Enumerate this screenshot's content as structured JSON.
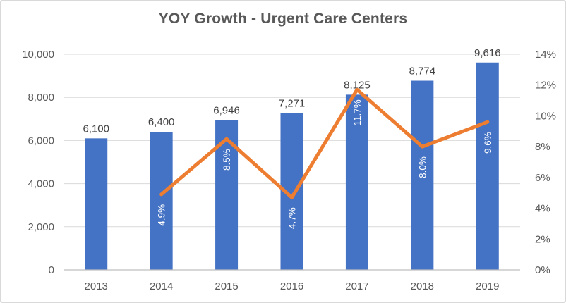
{
  "chart_data": {
    "type": "combo",
    "title": "YOY Growth - Urgent Care Centers",
    "categories": [
      "2013",
      "2014",
      "2015",
      "2016",
      "2017",
      "2018",
      "2019"
    ],
    "series": [
      {
        "name": "urgent-care-centers",
        "type": "bar",
        "axis": "left",
        "values": [
          6100,
          6400,
          6946,
          7271,
          8125,
          8774,
          9616
        ],
        "labels": [
          "6,100",
          "6,400",
          "6,946",
          "7,271",
          "8,125",
          "8,774",
          "9,616"
        ]
      },
      {
        "name": "yoy-growth-percent",
        "type": "line",
        "axis": "right",
        "values": [
          null,
          4.9,
          8.5,
          4.7,
          11.7,
          8.0,
          9.6
        ],
        "labels": [
          "",
          "4.9%",
          "8.5%",
          "4.7%",
          "11.7%",
          "8.0%",
          "9.6%"
        ]
      }
    ],
    "left_axis": {
      "min": 0,
      "max": 10000,
      "step": 2000,
      "tick_labels": [
        "0",
        "2,000",
        "4,000",
        "6,000",
        "8,000",
        "10,000"
      ]
    },
    "right_axis": {
      "min": 0,
      "max": 14,
      "step": 2,
      "tick_labels": [
        "0%",
        "2%",
        "4%",
        "6%",
        "8%",
        "10%",
        "12%",
        "14%"
      ]
    },
    "grid": true,
    "legend": "none"
  },
  "colors": {
    "bar": "#4472C4",
    "line": "#ED7D31",
    "grid": "#D9D9D9",
    "axis_line": "#BFBFBF",
    "axis_text": "#595959",
    "title_text": "#595959",
    "bar_label_text": "#404040",
    "line_label_text": "#FFFFFF",
    "background": "#FFFFFF",
    "border": "#D9D9D9"
  }
}
